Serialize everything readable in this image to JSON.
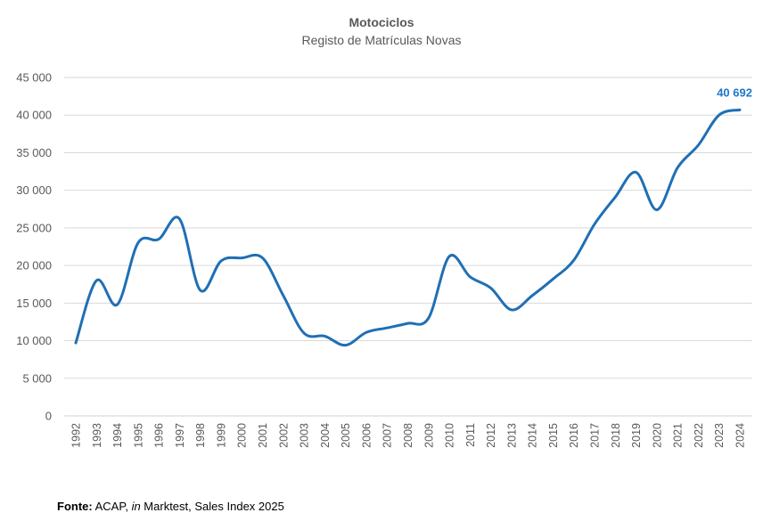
{
  "chart_data": {
    "type": "line",
    "title": "Motociclos",
    "subtitle": "Registo de Matrículas Novas",
    "xlabel": "",
    "ylabel": "",
    "ylim": [
      0,
      45000
    ],
    "yticks": [
      0,
      5000,
      10000,
      15000,
      20000,
      25000,
      30000,
      35000,
      40000,
      45000
    ],
    "ytick_labels": [
      "0",
      "5 000",
      "10 000",
      "15 000",
      "20 000",
      "25 000",
      "30 000",
      "35 000",
      "40 000",
      "45 000"
    ],
    "grid": true,
    "categories": [
      "1992",
      "1993",
      "1994",
      "1995",
      "1996",
      "1997",
      "1998",
      "1999",
      "2000",
      "2001",
      "2002",
      "2003",
      "2004",
      "2005",
      "2006",
      "2007",
      "2008",
      "2009",
      "2010",
      "2011",
      "2012",
      "2013",
      "2014",
      "2015",
      "2016",
      "2017",
      "2018",
      "2019",
      "2020",
      "2021",
      "2022",
      "2023",
      "2024"
    ],
    "series": [
      {
        "name": "Motociclos",
        "color": "#1f6fb5",
        "values": [
          9700,
          18000,
          14800,
          23000,
          23500,
          26200,
          16700,
          20600,
          21000,
          21000,
          16000,
          11000,
          10600,
          9400,
          11100,
          11700,
          12300,
          13000,
          21200,
          18500,
          17000,
          14100,
          16000,
          18200,
          20700,
          25500,
          29100,
          32400,
          27400,
          33000,
          36000,
          40000,
          40692
        ]
      }
    ],
    "annotations": [
      {
        "category": "2024",
        "value": 40692,
        "label": "40 692",
        "color": "#1f77c8"
      }
    ]
  },
  "source": {
    "prefix": "Fonte:",
    "part1": " ACAP, ",
    "italic": "in",
    "part2": " Marktest, Sales Index 2025"
  }
}
